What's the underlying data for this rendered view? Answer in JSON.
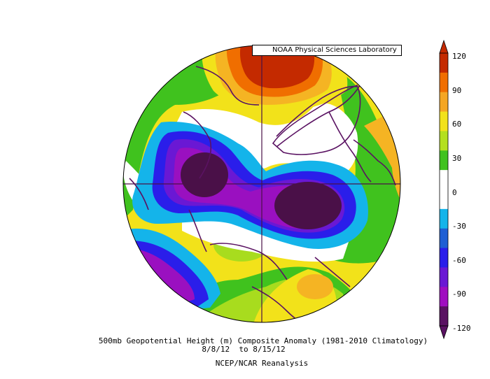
{
  "credit": "NOAA Physical Sciences Laboratory",
  "caption": {
    "line1": "500mb Geopotential Height (m) Composite Anomaly (1981-2010 Climatology)",
    "line2": "8/8/12  to 8/15/12",
    "line3": "NCEP/NCAR Reanalysis"
  },
  "colorbar": {
    "ticks": [
      "120",
      "90",
      "60",
      "30",
      "0",
      "-30",
      "-60",
      "-90",
      "-120"
    ],
    "colors": [
      "#c42a00",
      "#f06e00",
      "#f5a623",
      "#f2e21a",
      "#b4e01e",
      "#40c21e",
      "#ffffff",
      "#ffffff",
      "#14b4ea",
      "#1e5fd4",
      "#2a1eea",
      "#6a18d4",
      "#a00ec0",
      "#5a1262"
    ]
  },
  "palette": {
    "dark_purple": "#4a1048",
    "purple": "#9a10c0",
    "violet": "#6a18d4",
    "blue": "#2a1eea",
    "mid_blue": "#1e6ad4",
    "cyan": "#14b4ea",
    "green": "#40c21e",
    "lime": "#a8dc1e",
    "yellow": "#f2e21a",
    "gold": "#f5b423",
    "orange": "#f06e00",
    "red": "#c42a00",
    "coast": "#5a1262"
  }
}
